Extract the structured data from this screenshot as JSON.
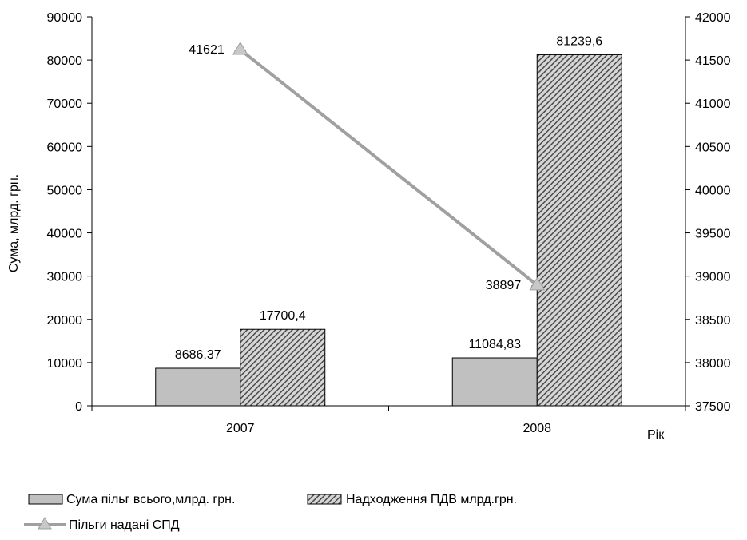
{
  "chart_data": {
    "type": "bar",
    "categories": [
      "2007",
      "2008"
    ],
    "xlabel": "Рік",
    "ylabel": "Сума, млрд. грн.",
    "ylim": [
      0,
      90000
    ],
    "yticks": [
      "0",
      "10000",
      "20000",
      "30000",
      "40000",
      "50000",
      "60000",
      "70000",
      "80000",
      "90000"
    ],
    "y2lim": [
      37500,
      42000
    ],
    "y2ticks": [
      "37500",
      "38000",
      "38500",
      "39000",
      "39500",
      "40000",
      "40500",
      "41000",
      "41500",
      "42000"
    ],
    "series": [
      {
        "name": "Сума пільг всього,млрд. грн.",
        "type": "bar",
        "axis": "left",
        "values": [
          8686.37,
          11084.83
        ],
        "labels": [
          "8686,37",
          "11084,83"
        ],
        "color": "#c0c0c0",
        "pattern": "solid"
      },
      {
        "name": "Надходження ПДВ млрд.грн.",
        "type": "bar",
        "axis": "left",
        "values": [
          17700.4,
          81239.6
        ],
        "labels": [
          "17700,4",
          "81239,6"
        ],
        "color": "#606060",
        "pattern": "diagonal-hatch"
      },
      {
        "name": "Пільги надані СПД",
        "type": "line",
        "axis": "right",
        "values": [
          41621,
          38897
        ],
        "labels": [
          "41621",
          "38897"
        ],
        "color": "#a0a0a0",
        "marker": "triangle"
      }
    ],
    "grid": false,
    "legend": "bottom"
  }
}
